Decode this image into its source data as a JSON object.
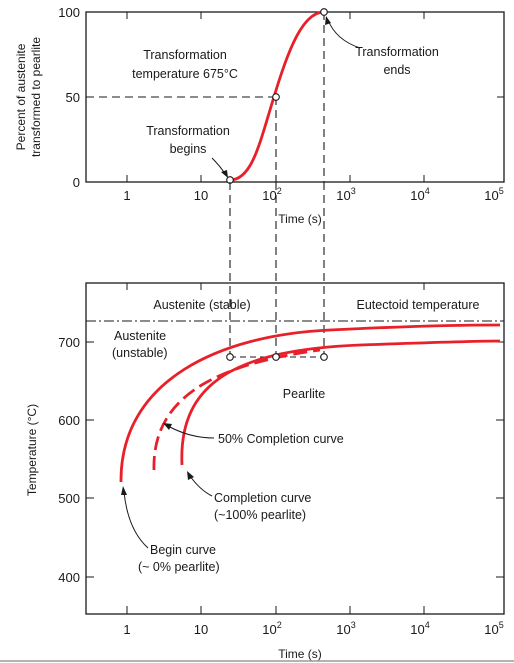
{
  "top_plot": {
    "ylabel_line1": "Percent of austenite",
    "ylabel_line2": "transformed to pearlite",
    "xlabel": "Time (s)",
    "yticks": [
      "0",
      "50",
      "100"
    ],
    "xticks": [
      "1",
      "10",
      "10",
      "10",
      "10",
      "10"
    ],
    "xtick_exponents": [
      "",
      "",
      "2",
      "3",
      "4",
      "5"
    ],
    "annotations": {
      "temp_line1": "Transformation",
      "temp_line2": "temperature 675°C",
      "begins_line1": "Transformation",
      "begins_line2": "begins",
      "ends_line1": "Transformation",
      "ends_line2": "ends"
    }
  },
  "bottom_plot": {
    "ylabel": "Temperature (°C)",
    "xlabel": "Time (s)",
    "yticks": [
      "400",
      "500",
      "600",
      "700"
    ],
    "xticks": [
      "1",
      "10",
      "10",
      "10",
      "10",
      "10"
    ],
    "xtick_exponents": [
      "",
      "",
      "2",
      "3",
      "4",
      "5"
    ],
    "labels": {
      "austenite_stable": "Austenite (stable)",
      "eutectoid": "Eutectoid temperature",
      "austenite_unstable_line1": "Austenite",
      "austenite_unstable_line2": "(unstable)",
      "pearlite": "Pearlite",
      "fifty_pct": "50% Completion curve",
      "completion_line1": "Completion curve",
      "completion_line2": "(~100% pearlite)",
      "begin_line1": "Begin curve",
      "begin_line2": "(~ 0% pearlite)"
    }
  },
  "colors": {
    "curve": "#e8202a",
    "axis": "#1a1a1a"
  }
}
